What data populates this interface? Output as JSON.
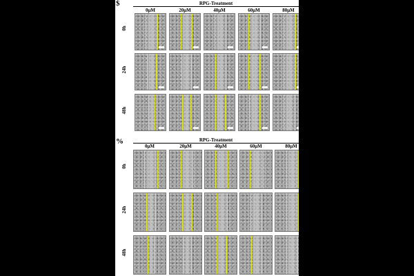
{
  "colors": {
    "background": "#000000",
    "figure_bg": "#ffffff",
    "wound_edge_line": "#e6ea2a"
  },
  "panels": [
    {
      "letter": "$",
      "treatment_title": "RPG-Treatment",
      "columns": [
        "0μM",
        "20μM",
        "40μM",
        "60μM",
        "80μM"
      ],
      "rows": [
        "0h",
        "24h",
        "48h"
      ]
    },
    {
      "letter": "%",
      "treatment_title": "RPG-Treatment",
      "columns": [
        "0μM",
        "20μM",
        "40μM",
        "60μM",
        "80μM"
      ],
      "rows": [
        "0h",
        "24h",
        "48h"
      ]
    }
  ]
}
